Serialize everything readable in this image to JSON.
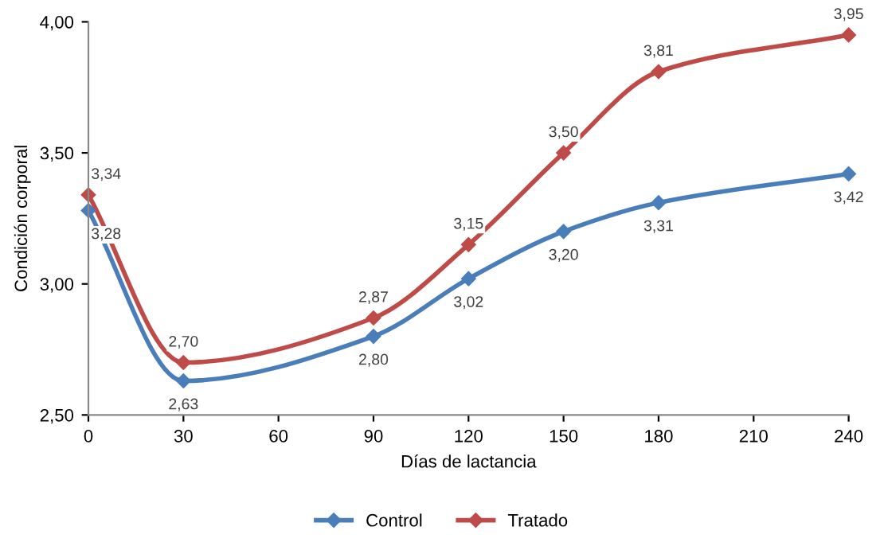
{
  "chart_data": {
    "type": "line",
    "xlabel": "Días de lactancia",
    "ylabel": "Condición corporal",
    "x": [
      0,
      30,
      90,
      120,
      150,
      180,
      240
    ],
    "series": [
      {
        "name": "Control",
        "color": "#4a7ebb",
        "values": [
          3.28,
          2.63,
          2.8,
          3.02,
          3.2,
          3.31,
          3.42
        ],
        "value_labels": [
          "3,28",
          "2,63",
          "2,80",
          "3,02",
          "3,20",
          "3,31",
          "3,42"
        ]
      },
      {
        "name": "Tratado",
        "color": "#be4b48",
        "values": [
          3.34,
          2.7,
          2.87,
          3.15,
          3.5,
          3.81,
          3.95
        ],
        "value_labels": [
          "3,34",
          "2,70",
          "2,87",
          "3,15",
          "3,50",
          "3,81",
          "3,95"
        ]
      }
    ],
    "xlim": [
      0,
      240
    ],
    "xticks": [
      0,
      30,
      60,
      90,
      120,
      150,
      180,
      210,
      240
    ],
    "ylim": [
      2.5,
      4.0
    ],
    "yticks": [
      {
        "value": 2.5,
        "label": "2,50"
      },
      {
        "value": 3.0,
        "label": "3,00"
      },
      {
        "value": 3.5,
        "label": "3,50"
      },
      {
        "value": 4.0,
        "label": "4,00"
      }
    ],
    "grid": false,
    "legend": "bottom",
    "marker": "diamond",
    "line_style": "solid"
  }
}
